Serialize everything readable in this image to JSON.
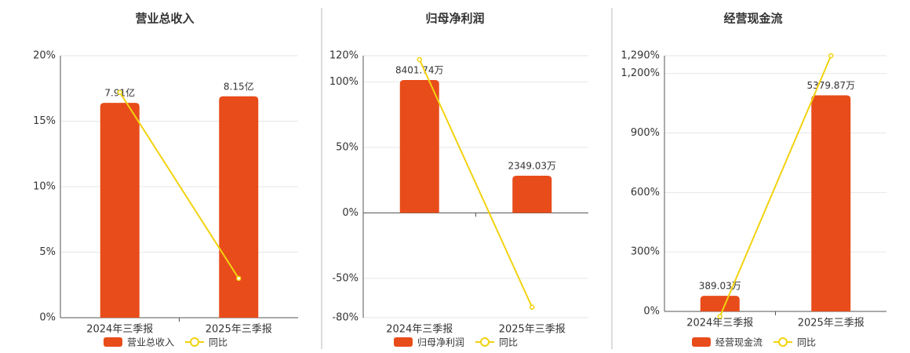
{
  "chart_data": [
    {
      "type": "bar",
      "title": "营业总收入",
      "categories": [
        "2024年三季报",
        "2025年三季报"
      ],
      "series": [
        {
          "name": "营业总收入",
          "type": "bar",
          "color": "#e84c1a",
          "values": [
            7.91,
            8.15
          ],
          "value_labels": [
            "7.91亿",
            "8.15亿"
          ]
        },
        {
          "name": "同比",
          "type": "line",
          "color": "#f2d20f",
          "values": [
            17.2,
            3.0
          ]
        }
      ],
      "ylim": [
        0,
        20
      ],
      "yticks": [
        {
          "value": 0,
          "label": "0%"
        },
        {
          "value": 5,
          "label": "5%"
        },
        {
          "value": 10,
          "label": "10%"
        },
        {
          "value": 15,
          "label": "15%"
        },
        {
          "value": 20,
          "label": "20%"
        }
      ],
      "grid": true
    },
    {
      "type": "bar",
      "title": "归母净利润",
      "categories": [
        "2024年三季报",
        "2025年三季报"
      ],
      "series": [
        {
          "name": "归母净利润",
          "type": "bar",
          "color": "#e84c1a",
          "values": [
            8401.74,
            2349.03
          ],
          "value_labels": [
            "8401.74万",
            "2349.03万"
          ]
        },
        {
          "name": "同比",
          "type": "line",
          "color": "#f2d20f",
          "values": [
            117,
            -72
          ]
        }
      ],
      "ylim": [
        -80,
        120
      ],
      "yticks": [
        {
          "value": -80,
          "label": "-80%"
        },
        {
          "value": -50,
          "label": "-50%"
        },
        {
          "value": 0,
          "label": "0%"
        },
        {
          "value": 50,
          "label": "50%"
        },
        {
          "value": 100,
          "label": "100%"
        },
        {
          "value": 120,
          "label": "120%"
        }
      ],
      "grid": true
    },
    {
      "type": "bar",
      "title": "经营现金流",
      "categories": [
        "2024年三季报",
        "2025年三季报"
      ],
      "series": [
        {
          "name": "经营现金流",
          "type": "bar",
          "color": "#e84c1a",
          "values": [
            389.03,
            5379.87
          ],
          "value_labels": [
            "389.03万",
            "5379.87万"
          ]
        },
        {
          "name": "同比",
          "type": "line",
          "color": "#f2d20f",
          "values": [
            -25,
            1290
          ]
        }
      ],
      "ylim": [
        0,
        1290
      ],
      "yticks": [
        {
          "value": 0,
          "label": "0%"
        },
        {
          "value": 300,
          "label": "300%"
        },
        {
          "value": 600,
          "label": "600%"
        },
        {
          "value": 900,
          "label": "900%"
        },
        {
          "value": 1200,
          "label": "1,200%"
        },
        {
          "value": 1290,
          "label": "1,290%"
        }
      ],
      "grid": true
    }
  ]
}
